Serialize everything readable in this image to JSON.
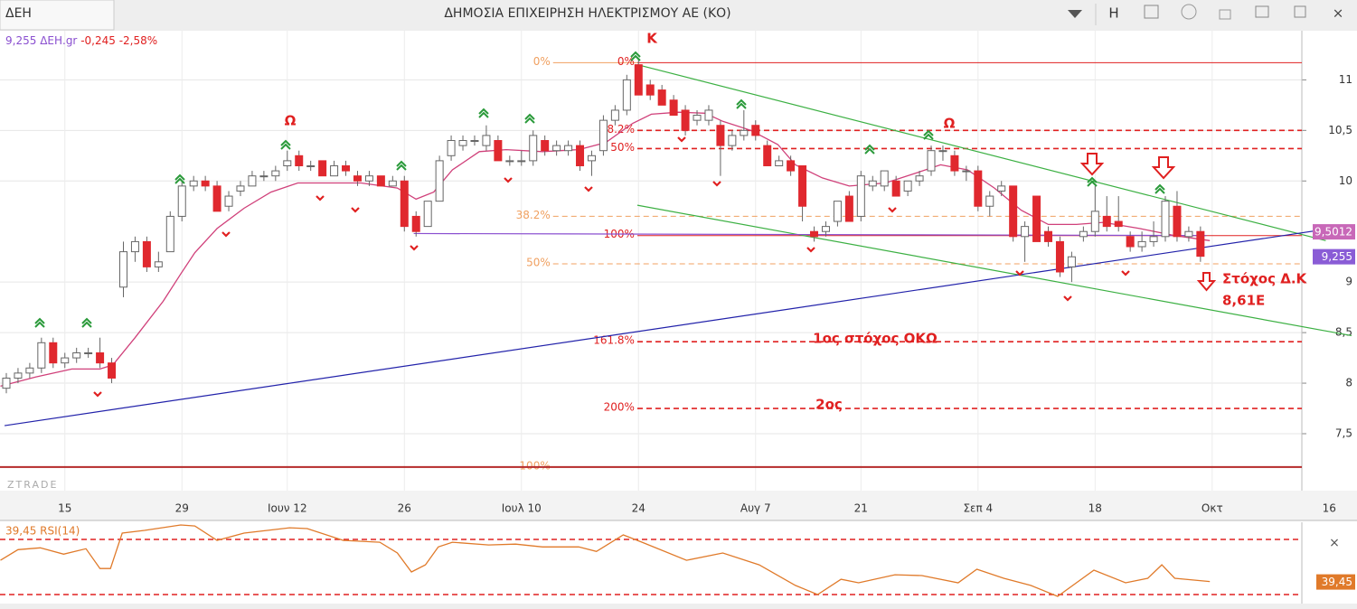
{
  "header": {
    "tab": "ΔΕΗ",
    "title": "ΔΗΜΟΣΙΑ ΕΠΙΧΕΙΡΗΣΗ ΗΛΕΚΤΡΙΣΜΟΥ ΑΕ (ΚΟ)",
    "button": "H"
  },
  "legend": {
    "price": "9,255",
    "symbol": "ΔΕΗ.gr",
    "change": "-0,245",
    "change_pct": "-2,58%"
  },
  "watermark": "ZTRADE",
  "annotations": [
    "Κ",
    "Ω",
    "Ω",
    "Στόχος Δ.Κ",
    "8,61E",
    "1ος στόχος ΟΚΩ",
    "2ος"
  ],
  "chart_data": {
    "type": "candlestick",
    "xlim": [
      -0.54,
      110.66
    ],
    "ylim": [
      6.937,
      11.486
    ],
    "grid": true,
    "xticks": [
      {
        "value": 5,
        "label": "15"
      },
      {
        "value": 15,
        "label": "29"
      },
      {
        "value": 24,
        "label": "Ιουν 12"
      },
      {
        "value": 34,
        "label": "26"
      },
      {
        "value": 44,
        "label": "Ιουλ 10"
      },
      {
        "value": 54,
        "label": "24"
      },
      {
        "value": 64,
        "label": "Αυγ 7"
      },
      {
        "value": 73,
        "label": "21"
      },
      {
        "value": 83,
        "label": "Σεπ 4"
      },
      {
        "value": 93,
        "label": "18"
      },
      {
        "value": 103,
        "label": "Οκτ"
      },
      {
        "value": 113,
        "label": "16"
      }
    ],
    "yticks": [
      {
        "value": 7.5,
        "label": "7,5"
      },
      8,
      {
        "value": 8.5,
        "label": "8,5"
      },
      9,
      10,
      {
        "value": 10.5,
        "label": "10,5"
      },
      11
    ],
    "up_color": "#ffffff",
    "down_color": "#e0282e",
    "candles": [
      [
        7.95,
        8.1,
        7.9,
        8.05
      ],
      [
        8.05,
        8.15,
        8.0,
        8.1
      ],
      [
        8.1,
        8.2,
        8.05,
        8.15
      ],
      [
        8.15,
        8.45,
        8.1,
        8.4
      ],
      [
        8.4,
        8.45,
        8.15,
        8.2
      ],
      [
        8.2,
        8.3,
        8.15,
        8.25
      ],
      [
        8.25,
        8.35,
        8.2,
        8.3
      ],
      [
        8.3,
        8.35,
        8.25,
        8.3
      ],
      [
        8.3,
        8.45,
        8.15,
        8.2
      ],
      [
        8.2,
        8.25,
        8.0,
        8.05
      ],
      [
        8.95,
        9.4,
        8.85,
        9.3
      ],
      [
        9.3,
        9.45,
        9.2,
        9.4
      ],
      [
        9.4,
        9.45,
        9.1,
        9.15
      ],
      [
        9.15,
        9.3,
        9.1,
        9.2
      ],
      [
        9.3,
        9.7,
        9.3,
        9.65
      ],
      [
        9.65,
        10.0,
        9.6,
        9.95
      ],
      [
        9.95,
        10.05,
        9.9,
        10.0
      ],
      [
        10.0,
        10.05,
        9.9,
        9.95
      ],
      [
        9.95,
        10.0,
        9.7,
        9.7
      ],
      [
        9.75,
        9.9,
        9.7,
        9.85
      ],
      [
        9.9,
        10.0,
        9.85,
        9.95
      ],
      [
        9.95,
        10.1,
        9.95,
        10.05
      ],
      [
        10.05,
        10.1,
        10.0,
        10.05
      ],
      [
        10.05,
        10.15,
        10.0,
        10.1
      ],
      [
        10.15,
        10.3,
        10.1,
        10.2
      ],
      [
        10.25,
        10.3,
        10.1,
        10.15
      ],
      [
        10.15,
        10.2,
        10.1,
        10.15
      ],
      [
        10.2,
        10.2,
        10.05,
        10.05
      ],
      [
        10.05,
        10.2,
        10.05,
        10.15
      ],
      [
        10.15,
        10.2,
        10.05,
        10.1
      ],
      [
        10.05,
        10.1,
        9.95,
        10.0
      ],
      [
        10.0,
        10.1,
        9.95,
        10.05
      ],
      [
        10.05,
        10.05,
        9.95,
        9.95
      ],
      [
        9.95,
        10.05,
        9.95,
        10.0
      ],
      [
        10.0,
        10.05,
        9.5,
        9.55
      ],
      [
        9.65,
        9.7,
        9.45,
        9.5
      ],
      [
        9.55,
        9.8,
        9.55,
        9.8
      ],
      [
        9.8,
        10.25,
        9.8,
        10.2
      ],
      [
        10.25,
        10.45,
        10.2,
        10.4
      ],
      [
        10.35,
        10.45,
        10.3,
        10.4
      ],
      [
        10.4,
        10.45,
        10.35,
        10.4
      ],
      [
        10.35,
        10.55,
        10.3,
        10.45
      ],
      [
        10.4,
        10.45,
        10.2,
        10.2
      ],
      [
        10.2,
        10.25,
        10.15,
        10.2
      ],
      [
        10.2,
        10.3,
        10.15,
        10.2
      ],
      [
        10.2,
        10.5,
        10.15,
        10.45
      ],
      [
        10.4,
        10.45,
        10.25,
        10.3
      ],
      [
        10.3,
        10.4,
        10.25,
        10.35
      ],
      [
        10.3,
        10.4,
        10.25,
        10.35
      ],
      [
        10.35,
        10.4,
        10.1,
        10.15
      ],
      [
        10.2,
        10.3,
        10.05,
        10.25
      ],
      [
        10.3,
        10.65,
        10.25,
        10.6
      ],
      [
        10.6,
        10.75,
        10.55,
        10.7
      ],
      [
        10.7,
        11.05,
        10.65,
        11.0
      ],
      [
        11.15,
        11.2,
        10.85,
        10.85
      ],
      [
        10.95,
        11.0,
        10.8,
        10.85
      ],
      [
        10.9,
        10.95,
        10.75,
        10.75
      ],
      [
        10.8,
        10.85,
        10.65,
        10.65
      ],
      [
        10.7,
        10.75,
        10.45,
        10.5
      ],
      [
        10.6,
        10.7,
        10.55,
        10.65
      ],
      [
        10.6,
        10.75,
        10.55,
        10.7
      ],
      [
        10.55,
        10.6,
        10.05,
        10.35
      ],
      [
        10.35,
        10.5,
        10.3,
        10.45
      ],
      [
        10.45,
        10.7,
        10.4,
        10.5
      ],
      [
        10.55,
        10.6,
        10.4,
        10.45
      ],
      [
        10.35,
        10.4,
        10.15,
        10.15
      ],
      [
        10.15,
        10.25,
        10.15,
        10.2
      ],
      [
        10.2,
        10.25,
        10.05,
        10.1
      ],
      [
        10.15,
        10.15,
        9.6,
        9.75
      ],
      [
        9.5,
        9.55,
        9.4,
        9.45
      ],
      [
        9.5,
        9.6,
        9.45,
        9.55
      ],
      [
        9.6,
        9.8,
        9.55,
        9.8
      ],
      [
        9.85,
        9.9,
        9.6,
        9.6
      ],
      [
        9.65,
        10.1,
        9.6,
        10.05
      ],
      [
        9.95,
        10.05,
        9.9,
        10.0
      ],
      [
        9.95,
        10.1,
        9.9,
        10.1
      ],
      [
        10.0,
        10.05,
        9.85,
        9.85
      ],
      [
        9.9,
        10.0,
        9.85,
        10.0
      ],
      [
        10.0,
        10.1,
        9.95,
        10.05
      ],
      [
        10.1,
        10.35,
        10.05,
        10.3
      ],
      [
        10.3,
        10.35,
        10.2,
        10.3
      ],
      [
        10.25,
        10.3,
        10.05,
        10.1
      ],
      [
        10.1,
        10.15,
        10.0,
        10.1
      ],
      [
        10.1,
        10.15,
        9.7,
        9.75
      ],
      [
        9.75,
        9.9,
        9.65,
        9.85
      ],
      [
        9.9,
        10.0,
        9.85,
        9.95
      ],
      [
        9.95,
        9.95,
        9.4,
        9.45
      ],
      [
        9.45,
        9.6,
        9.2,
        9.55
      ],
      [
        9.85,
        9.85,
        9.4,
        9.4
      ],
      [
        9.5,
        9.55,
        9.35,
        9.4
      ],
      [
        9.4,
        9.45,
        9.05,
        9.1
      ],
      [
        9.15,
        9.3,
        9.0,
        9.25
      ],
      [
        9.45,
        9.55,
        9.4,
        9.5
      ],
      [
        9.5,
        9.95,
        9.45,
        9.7
      ],
      [
        9.65,
        9.85,
        9.5,
        9.55
      ],
      [
        9.6,
        9.85,
        9.5,
        9.55
      ],
      [
        9.45,
        9.5,
        9.3,
        9.35
      ],
      [
        9.35,
        9.5,
        9.3,
        9.4
      ],
      [
        9.4,
        9.6,
        9.35,
        9.45
      ],
      [
        9.45,
        9.85,
        9.4,
        9.8
      ],
      [
        9.75,
        9.9,
        9.4,
        9.45
      ],
      [
        9.45,
        9.55,
        9.4,
        9.5
      ],
      [
        9.5,
        9.55,
        9.2,
        9.255
      ]
    ],
    "ma": {
      "color": "#d0407a",
      "x": [
        -0.5,
        2.5,
        5.6,
        8.0,
        9.1,
        11.0,
        13.4,
        14.9,
        16.1,
        18.0,
        20.3,
        22.6,
        24.9,
        28.0,
        30.3,
        33.4,
        35.0,
        36.5,
        38.1,
        40.4,
        42.7,
        45.8,
        48.9,
        51.2,
        53.5,
        55.1,
        57.4,
        59.7,
        61.2,
        63.6,
        65.9,
        67.4,
        69.7,
        72.0,
        75.1,
        77.5,
        79.8,
        82.1,
        84.4,
        86.7,
        89.0,
        91.4,
        93.7,
        96.8,
        99.8,
        102.8
      ],
      "values": [
        7.97,
        8.06,
        8.14,
        8.14,
        8.18,
        8.45,
        8.81,
        9.08,
        9.29,
        9.53,
        9.73,
        9.89,
        9.98,
        9.98,
        9.98,
        9.93,
        9.82,
        9.89,
        10.11,
        10.29,
        10.31,
        10.29,
        10.31,
        10.38,
        10.57,
        10.66,
        10.68,
        10.67,
        10.59,
        10.5,
        10.36,
        10.16,
        10.03,
        9.95,
        9.98,
        10.07,
        10.16,
        10.11,
        9.93,
        9.71,
        9.57,
        9.57,
        9.59,
        9.53,
        9.46,
        9.41
      ]
    },
    "fib_sets": [
      {
        "color": "#f0a060",
        "anchor": 46.7,
        "levels": [
          {
            "label": "0%",
            "value": 11.17,
            "end": 53.9,
            "dash": false
          },
          {
            "label": "38.2%",
            "value": 9.65,
            "end": 110.66,
            "dash": true
          },
          {
            "label": "50%",
            "value": 9.18,
            "end": 110.66,
            "dash": true
          },
          {
            "label": "100%",
            "value": 7.17,
            "end": 46.9,
            "dash": false
          }
        ]
      },
      {
        "color": "#e02020",
        "anchor": 53.9,
        "levels": [
          {
            "label": "0%",
            "value": 11.17,
            "end": 110.66,
            "dash": false
          },
          {
            "label": "38.2%",
            "value": 10.5,
            "end": 110.66,
            "dash": true
          },
          {
            "label": "50%",
            "value": 10.32,
            "end": 110.66,
            "dash": true
          },
          {
            "label": "100%",
            "value": 9.46,
            "end": 110.66,
            "dash": false
          },
          {
            "label": "161.8%",
            "value": 8.41,
            "end": 110.66,
            "dash": true
          },
          {
            "label": "200%",
            "value": 7.75,
            "end": 110.66,
            "dash": true
          }
        ]
      }
    ],
    "lines": [
      {
        "color": "#3cb043",
        "x": [
          53.9,
          112.7
        ],
        "values": [
          11.15,
          9.41
        ]
      },
      {
        "color": "#3cb043",
        "x": [
          53.9,
          114.9
        ],
        "values": [
          9.76,
          8.47
        ]
      },
      {
        "color": "#2222aa",
        "x": [
          -0.15,
          114.9
        ],
        "values": [
          7.58,
          9.56
        ]
      },
      {
        "color": "#8a4fd0",
        "x": [
          34.8,
          102.5
        ],
        "values": [
          9.48,
          9.46
        ]
      },
      {
        "color": "#b52a2a",
        "x": [
          -0.54,
          110.66
        ],
        "values": [
          7.17,
          7.17
        ]
      }
    ],
    "price_tags": [
      {
        "value": 9.5012,
        "label": "9,5012",
        "color": "#c868b8"
      },
      {
        "value": 9.255,
        "label": "9,255",
        "color": "#8a5cd6"
      }
    ],
    "rsi": {
      "label": "39,45 RSI(14)",
      "color": "#e07a2a",
      "ylim": [
        25.4,
        82.5
      ],
      "levels": [
        70,
        30
      ],
      "tag": {
        "value": 39.45,
        "label": "39,45"
      },
      "x": [
        -0.5,
        1.0,
        2.9,
        4.9,
        6.8,
        8.0,
        8.9,
        9.9,
        11.8,
        14.9,
        16.1,
        18.0,
        20.3,
        24.2,
        25.7,
        28.8,
        31.9,
        33.4,
        34.6,
        35.8,
        36.9,
        38.1,
        41.2,
        43.5,
        45.8,
        48.9,
        50.4,
        52.7,
        54.3,
        58.1,
        61.2,
        64.3,
        67.4,
        69.3,
        71.3,
        72.8,
        75.9,
        78.2,
        81.3,
        82.9,
        85.2,
        87.5,
        89.8,
        91.4,
        92.9,
        95.6,
        97.5,
        98.7,
        99.8,
        102.8
      ],
      "values": [
        54.9,
        62.6,
        63.9,
        59.3,
        63.3,
        48.9,
        48.9,
        74.6,
        76.6,
        80.5,
        79.8,
        69.3,
        74.6,
        78.5,
        77.9,
        69.3,
        68.0,
        60.2,
        46.4,
        51.6,
        64.6,
        68.0,
        66.0,
        66.6,
        64.6,
        64.6,
        61.3,
        73.3,
        68.0,
        54.9,
        60.2,
        51.6,
        36.6,
        30.0,
        41.1,
        38.5,
        44.4,
        43.8,
        38.5,
        48.4,
        41.8,
        36.6,
        28.7,
        38.5,
        47.7,
        38.5,
        41.8,
        51.6,
        41.8,
        39.45
      ]
    }
  }
}
